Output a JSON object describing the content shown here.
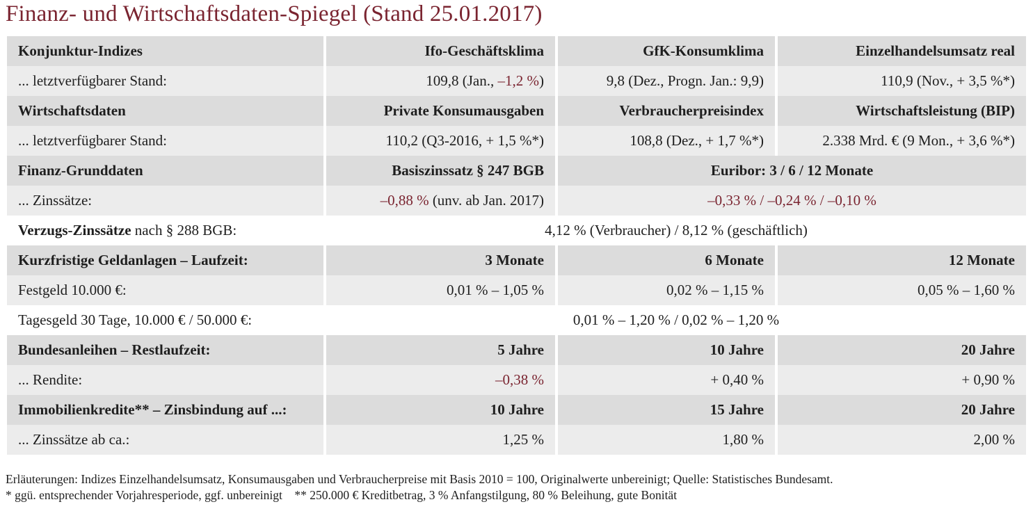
{
  "title": "Finanz- und Wirtschaftsdaten-Spiegel (Stand 25.01.2017)",
  "rows": [
    {
      "c0": "Konjunktur-Indizes",
      "c1": "Ifo-Geschäftsklima",
      "c2": "GfK-Konsumklima",
      "c3": "Einzelhandelsumsatz real"
    },
    {
      "c0": "... letztverfügbarer Stand:",
      "c1a": "109,8 (Jan., ",
      "c1b": "–1,2 %",
      "c1c": ")",
      "c2": "9,8 (Dez., Progn. Jan.: 9,9)",
      "c3": "110,9 (Nov., + 3,5 %*)"
    },
    {
      "c0": "Wirtschaftsdaten",
      "c1": "Private Konsumausgaben",
      "c2": "Verbraucherpreisindex",
      "c3": "Wirtschaftsleistung (BIP)"
    },
    {
      "c0": "... letztverfügbarer Stand:",
      "c1": "110,2 (Q3-2016, + 1,5 %*)",
      "c2": "108,8 (Dez., + 1,7 %*)",
      "c3": "2.338 Mrd. € (9 Mon., + 3,6 %*)"
    },
    {
      "c0": "Finanz-Grunddaten",
      "c1": "Basiszinssatz § 247 BGB",
      "c23": "Euribor: 3 / 6 / 12 Monate"
    },
    {
      "c0": "... Zinssätze:",
      "c1a": "–0,88 %",
      "c1b": " (unv. ab Jan. 2017)",
      "c23": "–0,33 % / –0,24 % / –0,10 %"
    },
    {
      "c0a": "Verzugs-Zinssätze",
      "c0b": " nach § 288 BGB:",
      "c123": "4,12 % (Verbraucher) / 8,12 % (geschäftlich)"
    },
    {
      "c0": "Kurzfristige Geldanlagen – Laufzeit:",
      "c1": "3 Monate",
      "c2": "6 Monate",
      "c3": "12 Monate"
    },
    {
      "c0": "Festgeld 10.000 €:",
      "c1": "0,01 % – 1,05 %",
      "c2": "0,02 % – 1,15 %",
      "c3": "0,05 % – 1,60 %"
    },
    {
      "c0": "Tagesgeld 30 Tage, 10.000 € / 50.000 €:",
      "c123": "0,01 % – 1,20 % / 0,02 % – 1,20 %"
    },
    {
      "c0": "Bundesanleihen – Restlaufzeit:",
      "c1": "5 Jahre",
      "c2": "10 Jahre",
      "c3": "20 Jahre"
    },
    {
      "c0": "... Rendite:",
      "c1": "–0,38 %",
      "c2": "+ 0,40 %",
      "c3": "+ 0,90 %"
    },
    {
      "c0": "Immobilienkredite** – Zinsbindung auf ...:",
      "c1": "10 Jahre",
      "c2": "15 Jahre",
      "c3": "20 Jahre"
    },
    {
      "c0": "... Zinssätze ab ca.:",
      "c1": "1,25 %",
      "c2": "1,80 %",
      "c3": "2,00 %"
    }
  ],
  "footnotes": {
    "line1": "Erläuterungen: Indizes Einzelhandelsumsatz, Konsumausgaben und Verbraucherpreise mit Basis 2010 = 100, Originalwerte unbereinigt; Quelle: Statistisches Bundesamt.",
    "line2": "* ggü. entsprechender Vorjahresperiode, ggf. unbereinigt    ** 250.000 € Kreditbetrag, 3 % Anfangstilgung, 80 % Beleihung, gute Bonität"
  },
  "colors": {
    "accent": "#7a2430",
    "header_bg": "#dcdcdc",
    "row_bg": "#ececec"
  }
}
